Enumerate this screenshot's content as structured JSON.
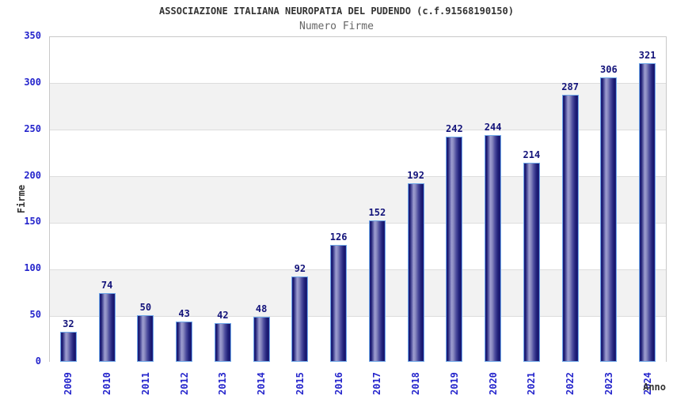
{
  "chart_data": {
    "type": "bar",
    "title": "ASSOCIAZIONE ITALIANA NEUROPATIA DEL PUDENDO (c.f.91568190150)",
    "subtitle": "Numero Firme",
    "xlabel": "Anno",
    "ylabel": "Firme",
    "categories": [
      "2009",
      "2010",
      "2011",
      "2012",
      "2013",
      "2014",
      "2015",
      "2016",
      "2017",
      "2018",
      "2019",
      "2020",
      "2021",
      "2022",
      "2023",
      "2024"
    ],
    "values": [
      32,
      74,
      50,
      43,
      42,
      48,
      92,
      126,
      152,
      192,
      242,
      244,
      214,
      287,
      306,
      321
    ],
    "ylim": [
      0,
      350
    ],
    "ytick_step": 50,
    "yticks": [
      0,
      50,
      100,
      150,
      200,
      250,
      300,
      350
    ],
    "grid": true,
    "legend": "none",
    "plot_bands_alternating": true,
    "colors": {
      "bar_dark": "#16166b",
      "bar_highlight": "#9d9dd0",
      "bar_border": "#6fa8e8",
      "tick_label": "#2525cc",
      "value_label": "#13137a",
      "title": "#333333",
      "subtitle": "#666666",
      "band_gray": "#f2f2f2",
      "band_white": "#ffffff",
      "gridline": "#dddddd",
      "plot_border": "#c9c9c9"
    }
  }
}
